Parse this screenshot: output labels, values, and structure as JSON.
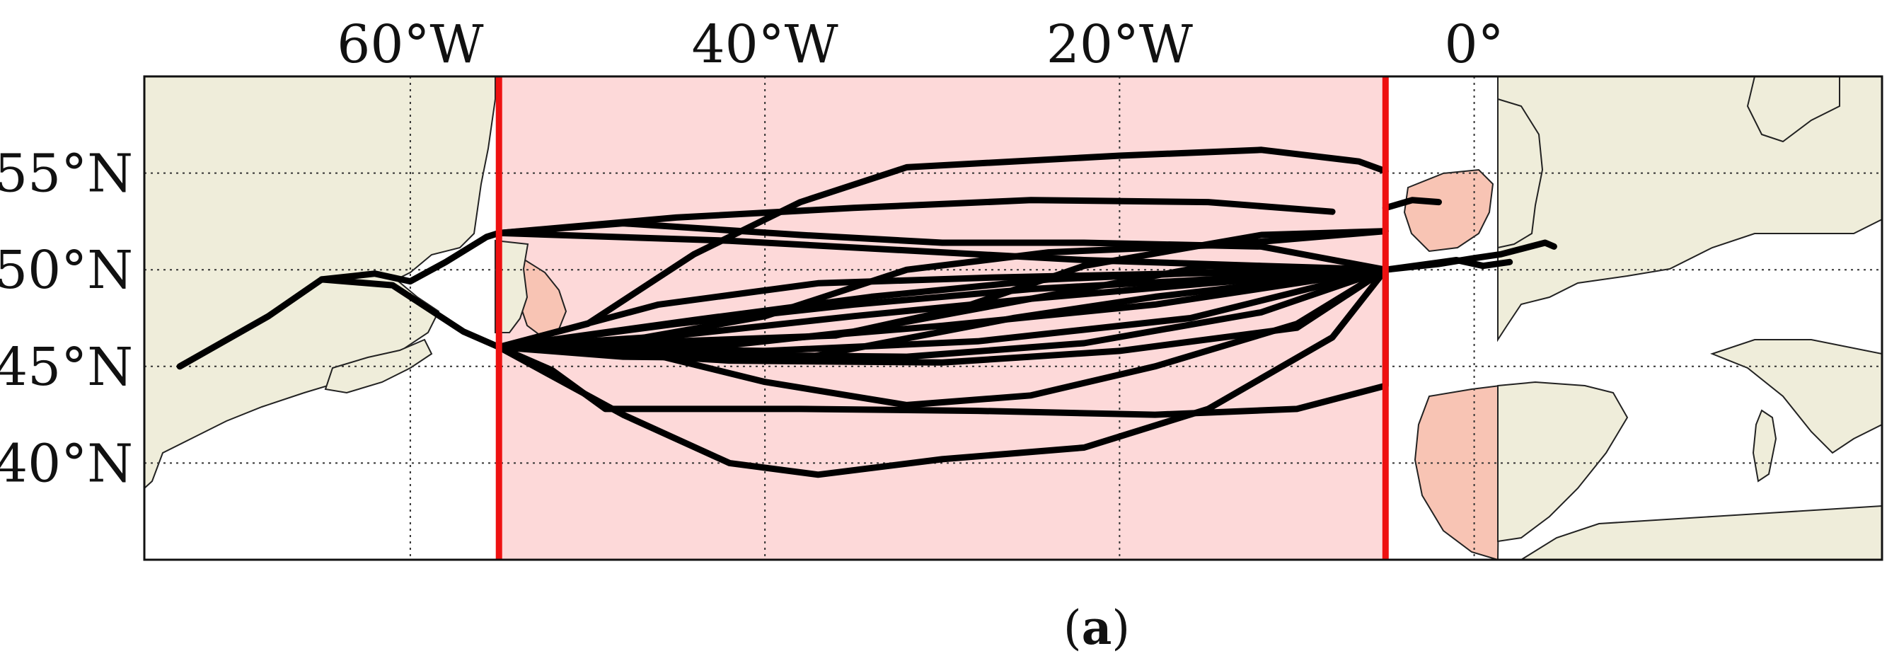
{
  "map": {
    "lon_range": [
      -75,
      23
    ],
    "lat_range": [
      35,
      60
    ],
    "lon_ticks": [
      {
        "value": -60,
        "label": "60°W"
      },
      {
        "value": -40,
        "label": "40°W"
      },
      {
        "value": -20,
        "label": "20°W"
      },
      {
        "value": 0,
        "label": "0°"
      }
    ],
    "lat_ticks": [
      {
        "value": 55,
        "label": "55°N"
      },
      {
        "value": 50,
        "label": "50°N"
      },
      {
        "value": 45,
        "label": "45°N"
      },
      {
        "value": 40,
        "label": "40°N"
      }
    ],
    "grid": "dotted",
    "region": {
      "lon_min": -55,
      "lon_max": -5,
      "fill": "#fdd9d9",
      "edge": "#ee1111"
    },
    "colors": {
      "land": "#efedda",
      "land_in_region": "#f8c4b4",
      "coast": "#222222",
      "tracks": "#000000"
    }
  },
  "chart_data": {
    "type": "map-tracks",
    "coords": "lon/lat degrees",
    "tracks": [
      [
        [
          -73,
          45
        ],
        [
          -68,
          47.6
        ],
        [
          -65,
          49.5
        ],
        [
          -61,
          49.2
        ],
        [
          -57,
          46.8
        ],
        [
          -55,
          46
        ]
      ],
      [
        [
          -65,
          49.5
        ],
        [
          -62,
          49.8
        ],
        [
          -60,
          49.4
        ],
        [
          -58,
          50.4
        ],
        [
          -55.7,
          51.7
        ],
        [
          -55,
          51.9
        ]
      ],
      [
        [
          -55,
          51.9
        ],
        [
          -48,
          52.4
        ],
        [
          -38,
          51.8
        ],
        [
          -30,
          51.4
        ],
        [
          -22,
          51.4
        ],
        [
          -12,
          51.2
        ],
        [
          -5,
          50
        ]
      ],
      [
        [
          -55,
          51.9
        ],
        [
          -45,
          52.7
        ],
        [
          -35,
          53.2
        ],
        [
          -25,
          53.6
        ],
        [
          -15,
          53.5
        ],
        [
          -8,
          53
        ]
      ],
      [
        [
          -55,
          51.9
        ],
        [
          -42,
          51.5
        ],
        [
          -32,
          51
        ],
        [
          -22,
          50.5
        ],
        [
          -12,
          50.2
        ],
        [
          -5,
          50
        ]
      ],
      [
        [
          -55,
          46
        ],
        [
          -45,
          47.2
        ],
        [
          -35,
          48.2
        ],
        [
          -25,
          49
        ],
        [
          -15,
          49.5
        ],
        [
          -5,
          50
        ]
      ],
      [
        [
          -55,
          46
        ],
        [
          -45,
          46.6
        ],
        [
          -35,
          47.6
        ],
        [
          -25,
          48.5
        ],
        [
          -15,
          49.3
        ],
        [
          -5,
          50
        ]
      ],
      [
        [
          -55,
          46
        ],
        [
          -42,
          46.2
        ],
        [
          -30,
          47.1
        ],
        [
          -18,
          48.2
        ],
        [
          -5,
          50
        ]
      ],
      [
        [
          -55,
          46
        ],
        [
          -44,
          47.4
        ],
        [
          -34,
          48.6
        ],
        [
          -24,
          49.5
        ],
        [
          -14,
          49.9
        ],
        [
          -5,
          50
        ]
      ],
      [
        [
          -55,
          46
        ],
        [
          -46,
          48.2
        ],
        [
          -37,
          49.3
        ],
        [
          -27,
          49.6
        ],
        [
          -17,
          49.8
        ],
        [
          -5,
          50
        ]
      ],
      [
        [
          -55,
          46
        ],
        [
          -43,
          45.6
        ],
        [
          -32,
          45.5
        ],
        [
          -22,
          46.2
        ],
        [
          -12,
          47.8
        ],
        [
          -5,
          50
        ]
      ],
      [
        [
          -55,
          46
        ],
        [
          -40,
          45.8
        ],
        [
          -28,
          46.3
        ],
        [
          -16,
          47.5
        ],
        [
          -5,
          50
        ]
      ],
      [
        [
          -55,
          46
        ],
        [
          -48,
          45.5
        ],
        [
          -38,
          45.4
        ],
        [
          -26,
          47.5
        ],
        [
          -18,
          48.6
        ],
        [
          -5,
          50
        ]
      ],
      [
        [
          -55,
          46
        ],
        [
          -44,
          45.9
        ],
        [
          -35,
          46.8
        ],
        [
          -25,
          48.5
        ],
        [
          -15,
          50.2
        ],
        [
          -5,
          50
        ]
      ],
      [
        [
          -55,
          46
        ],
        [
          -45,
          46.3
        ],
        [
          -36,
          46.6
        ],
        [
          -29,
          48
        ],
        [
          -22,
          50.2
        ],
        [
          -12,
          51.8
        ],
        [
          -5,
          52
        ]
      ],
      [
        [
          -55,
          46
        ],
        [
          -48,
          46.3
        ],
        [
          -40,
          47.6
        ],
        [
          -32,
          50
        ],
        [
          -24,
          50.9
        ],
        [
          -14,
          51.3
        ],
        [
          -5,
          52
        ]
      ],
      [
        [
          -55,
          46
        ],
        [
          -50,
          47.2
        ],
        [
          -44,
          50.8
        ],
        [
          -38,
          53.5
        ],
        [
          -32,
          55.3
        ],
        [
          -20,
          55.9
        ],
        [
          -12,
          56.2
        ],
        [
          -6.5,
          55.6
        ],
        [
          -5,
          55.1
        ]
      ],
      [
        [
          -55,
          46
        ],
        [
          -52,
          44.8
        ],
        [
          -49,
          42.8
        ],
        [
          -38,
          42.8
        ],
        [
          -28,
          42.7
        ],
        [
          -18,
          42.5
        ],
        [
          -10,
          42.8
        ],
        [
          -5,
          44
        ],
        [
          -5,
          48
        ],
        [
          -5,
          50
        ]
      ],
      [
        [
          -55,
          46
        ],
        [
          -48,
          42.5
        ],
        [
          -42,
          40
        ],
        [
          -37,
          39.4
        ],
        [
          -30,
          40.2
        ],
        [
          -22,
          40.8
        ],
        [
          -15,
          42.8
        ],
        [
          -8,
          46.5
        ],
        [
          -5,
          50
        ]
      ],
      [
        [
          -55,
          46
        ],
        [
          -48,
          46
        ],
        [
          -40,
          44.2
        ],
        [
          -32,
          43
        ],
        [
          -25,
          43.5
        ],
        [
          -18,
          45
        ],
        [
          -10,
          47.2
        ],
        [
          -5,
          50
        ]
      ],
      [
        [
          -55,
          46
        ],
        [
          -42,
          45.3
        ],
        [
          -30,
          45.2
        ],
        [
          -20,
          45.8
        ],
        [
          -10,
          47
        ],
        [
          -5,
          50
        ]
      ],
      [
        [
          -5,
          50
        ],
        [
          -2,
          50.3
        ],
        [
          0,
          50.6
        ],
        [
          1.5,
          50.8
        ],
        [
          4,
          51.4
        ],
        [
          4.5,
          51.2
        ]
      ],
      [
        [
          -5,
          50
        ],
        [
          -1,
          50.5
        ],
        [
          0.5,
          50.2
        ],
        [
          2,
          50.4
        ]
      ],
      [
        [
          -5,
          53.2
        ],
        [
          -3.5,
          53.6
        ],
        [
          -2,
          53.5
        ]
      ]
    ]
  },
  "caption": {
    "open": "(",
    "letter": "a",
    "close": ")"
  }
}
